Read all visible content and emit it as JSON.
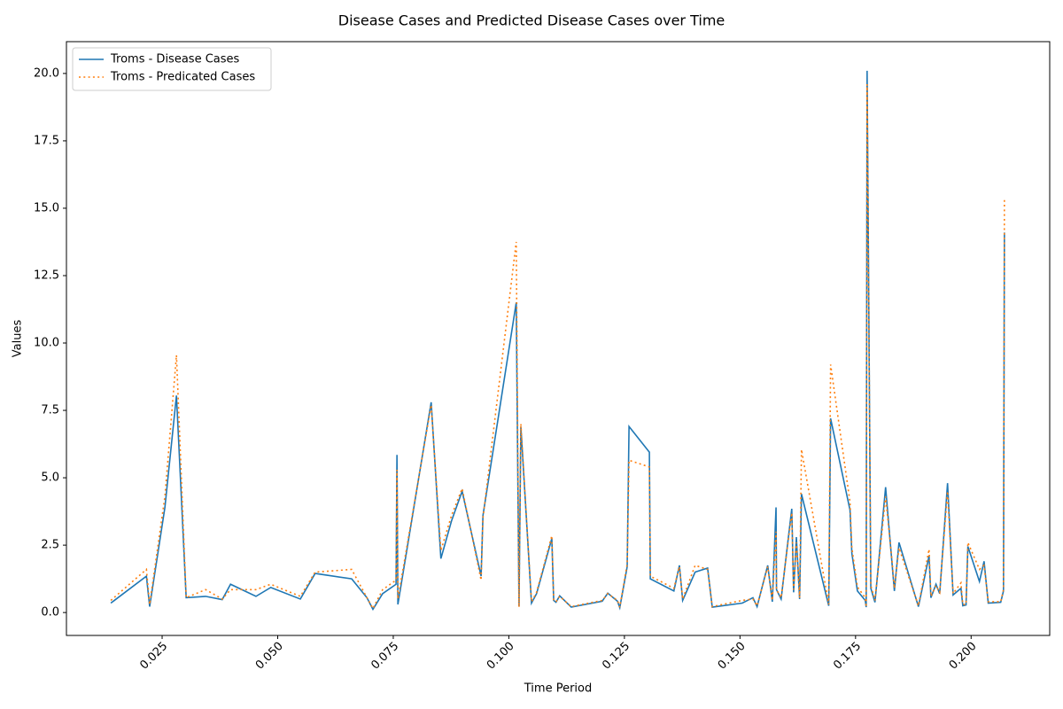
{
  "chart_data": {
    "type": "line",
    "title": "Disease Cases and Predicted Disease Cases over Time",
    "x_label": "Time Period",
    "y_label": "Values",
    "x": [
      0.0139,
      0.0216,
      0.0223,
      0.0256,
      0.0281,
      0.0302,
      0.0344,
      0.038,
      0.0398,
      0.0453,
      0.0485,
      0.0549,
      0.0581,
      0.066,
      0.0693,
      0.0706,
      0.0727,
      0.0756,
      0.0758,
      0.076,
      0.0832,
      0.0853,
      0.0876,
      0.0899,
      0.094,
      0.0944,
      0.1016,
      0.1022,
      0.1026,
      0.1049,
      0.106,
      0.1093,
      0.1097,
      0.1102,
      0.111,
      0.1135,
      0.1202,
      0.1214,
      0.1235,
      0.124,
      0.1256,
      0.126,
      0.1304,
      0.1306,
      0.1357,
      0.1369,
      0.1376,
      0.1403,
      0.143,
      0.144,
      0.1505,
      0.1528,
      0.1537,
      0.156,
      0.157,
      0.1578,
      0.1579,
      0.1589,
      0.1612,
      0.1616,
      0.1622,
      0.1629,
      0.1633,
      0.1692,
      0.1696,
      0.1738,
      0.1742,
      0.1754,
      0.1771,
      0.1773,
      0.1775,
      0.1783,
      0.1792,
      0.1815,
      0.1829,
      0.1834,
      0.1844,
      0.1886,
      0.1909,
      0.1913,
      0.1924,
      0.1932,
      0.1949,
      0.1961,
      0.1978,
      0.1982,
      0.1989,
      0.1993,
      0.2018,
      0.2028,
      0.2037,
      0.2064,
      0.207,
      0.2072
    ],
    "series": [
      {
        "name": "Troms - Disease Cases",
        "color": "#1f77b4",
        "style": "solid",
        "values": [
          0.35,
          1.35,
          0.22,
          3.9,
          8.05,
          0.55,
          0.6,
          0.48,
          1.05,
          0.6,
          0.93,
          0.5,
          1.45,
          1.25,
          0.55,
          0.12,
          0.7,
          1.05,
          5.85,
          0.3,
          7.8,
          2.0,
          3.4,
          4.5,
          1.35,
          3.6,
          11.5,
          0.22,
          6.9,
          0.35,
          0.7,
          2.75,
          0.45,
          0.38,
          0.62,
          0.2,
          0.42,
          0.72,
          0.42,
          0.18,
          1.7,
          6.9,
          5.95,
          1.25,
          0.8,
          1.75,
          0.45,
          1.5,
          1.65,
          0.2,
          0.35,
          0.55,
          0.22,
          1.75,
          0.4,
          3.9,
          0.85,
          0.5,
          3.85,
          0.75,
          2.8,
          0.5,
          4.4,
          0.25,
          7.2,
          3.8,
          2.2,
          0.8,
          0.45,
          0.2,
          20.1,
          0.9,
          0.38,
          4.65,
          1.8,
          0.8,
          2.6,
          0.22,
          2.1,
          0.55,
          1.05,
          0.7,
          4.8,
          0.65,
          0.9,
          0.25,
          0.28,
          2.45,
          1.15,
          1.9,
          0.35,
          0.38,
          0.8,
          14.1
        ]
      },
      {
        "name": "Troms - Predicated Cases",
        "color": "#ff7f0e",
        "style": "dotted",
        "values": [
          0.45,
          1.6,
          0.3,
          4.3,
          9.55,
          0.55,
          0.85,
          0.5,
          0.85,
          0.85,
          1.05,
          0.6,
          1.5,
          1.6,
          0.55,
          0.15,
          0.85,
          1.2,
          5.3,
          0.5,
          7.7,
          2.3,
          3.6,
          4.6,
          1.2,
          3.5,
          13.75,
          0.2,
          7.0,
          0.4,
          0.75,
          2.85,
          0.45,
          0.4,
          0.6,
          0.22,
          0.45,
          0.7,
          0.45,
          0.2,
          1.8,
          5.65,
          5.4,
          1.35,
          0.9,
          1.7,
          0.5,
          1.75,
          1.6,
          0.22,
          0.45,
          0.5,
          0.25,
          1.7,
          0.45,
          3.0,
          0.85,
          0.55,
          3.7,
          0.85,
          2.6,
          0.55,
          6.05,
          0.3,
          9.2,
          4.1,
          2.4,
          0.95,
          0.55,
          0.2,
          19.6,
          1.0,
          0.45,
          4.3,
          1.9,
          0.9,
          2.4,
          0.25,
          2.35,
          0.6,
          1.0,
          0.75,
          4.5,
          0.7,
          1.1,
          0.3,
          0.3,
          2.6,
          1.6,
          1.75,
          0.4,
          0.4,
          0.85,
          15.35
        ]
      }
    ],
    "xlim": [
      0.0043,
      0.217
    ],
    "ylim": [
      -0.85,
      21.18
    ],
    "xticks": [
      0.025,
      {
        "value": 0.05,
        "label": "0.050"
      },
      0.075,
      {
        "value": 0.1,
        "label": "0.100"
      },
      0.125,
      {
        "value": 0.15,
        "label": "0.150"
      },
      0.175,
      {
        "value": 0.2,
        "label": "0.200"
      }
    ],
    "yticks": [
      {
        "value": 0,
        "label": "0.0"
      },
      2.5,
      {
        "value": 5,
        "label": "5.0"
      },
      7.5,
      {
        "value": 10,
        "label": "10.0"
      },
      12.5,
      {
        "value": 15,
        "label": "15.0"
      },
      17.5,
      {
        "value": 20,
        "label": "20.0"
      }
    ],
    "legend": "upper left",
    "grid": false
  }
}
